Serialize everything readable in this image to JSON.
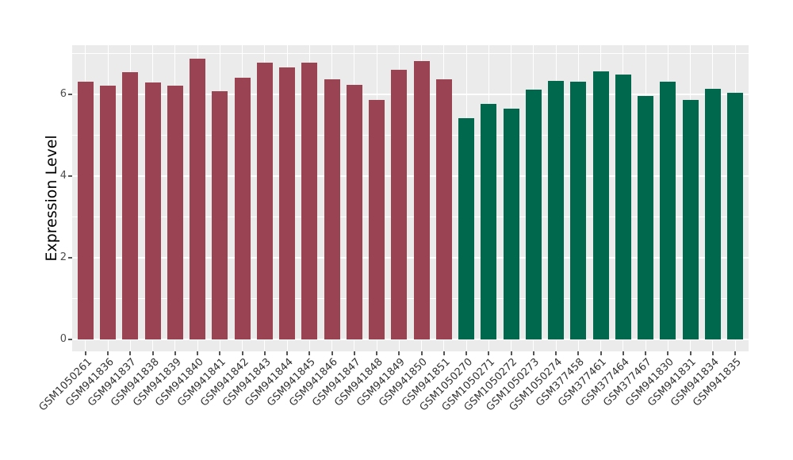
{
  "chart_data": {
    "type": "bar",
    "title": "",
    "xlabel": "",
    "ylabel": "Expression Level",
    "ylim": [
      -0.29,
      7.21
    ],
    "yticks_major": [
      0,
      2,
      4,
      6
    ],
    "yticks_minor": [
      1,
      3,
      5,
      7
    ],
    "grid": "on",
    "legend": "none",
    "panel_bg": "#EBEBEB",
    "grid_color": "#FFFFFF",
    "group_colors": {
      "group1": "#9A4352",
      "group2": "#00684C"
    },
    "bars": [
      {
        "label": "GSM1050261",
        "value": 6.31,
        "group": "group1"
      },
      {
        "label": "GSM941836",
        "value": 6.22,
        "group": "group1"
      },
      {
        "label": "GSM941837",
        "value": 6.54,
        "group": "group1"
      },
      {
        "label": "GSM941838",
        "value": 6.3,
        "group": "group1"
      },
      {
        "label": "GSM941839",
        "value": 6.22,
        "group": "group1"
      },
      {
        "label": "GSM941840",
        "value": 6.88,
        "group": "group1"
      },
      {
        "label": "GSM941841",
        "value": 6.09,
        "group": "group1"
      },
      {
        "label": "GSM941842",
        "value": 6.41,
        "group": "group1"
      },
      {
        "label": "GSM941843",
        "value": 6.79,
        "group": "group1"
      },
      {
        "label": "GSM941844",
        "value": 6.67,
        "group": "group1"
      },
      {
        "label": "GSM941845",
        "value": 6.78,
        "group": "group1"
      },
      {
        "label": "GSM941846",
        "value": 6.37,
        "group": "group1"
      },
      {
        "label": "GSM941847",
        "value": 6.24,
        "group": "group1"
      },
      {
        "label": "GSM941848",
        "value": 5.87,
        "group": "group1"
      },
      {
        "label": "GSM941849",
        "value": 6.6,
        "group": "group1"
      },
      {
        "label": "GSM941850",
        "value": 6.83,
        "group": "group1"
      },
      {
        "label": "GSM941851",
        "value": 6.37,
        "group": "group1"
      },
      {
        "label": "GSM1050270",
        "value": 5.43,
        "group": "group2"
      },
      {
        "label": "GSM1050271",
        "value": 5.78,
        "group": "group2"
      },
      {
        "label": "GSM1050272",
        "value": 5.66,
        "group": "group2"
      },
      {
        "label": "GSM1050273",
        "value": 6.12,
        "group": "group2"
      },
      {
        "label": "GSM1050274",
        "value": 6.34,
        "group": "group2"
      },
      {
        "label": "GSM377458",
        "value": 6.31,
        "group": "group2"
      },
      {
        "label": "GSM377461",
        "value": 6.57,
        "group": "group2"
      },
      {
        "label": "GSM377464",
        "value": 6.5,
        "group": "group2"
      },
      {
        "label": "GSM377467",
        "value": 5.96,
        "group": "group2"
      },
      {
        "label": "GSM941830",
        "value": 6.32,
        "group": "group2"
      },
      {
        "label": "GSM941831",
        "value": 5.87,
        "group": "group2"
      },
      {
        "label": "GSM941834",
        "value": 6.14,
        "group": "group2"
      },
      {
        "label": "GSM941835",
        "value": 6.05,
        "group": "group2"
      }
    ]
  }
}
